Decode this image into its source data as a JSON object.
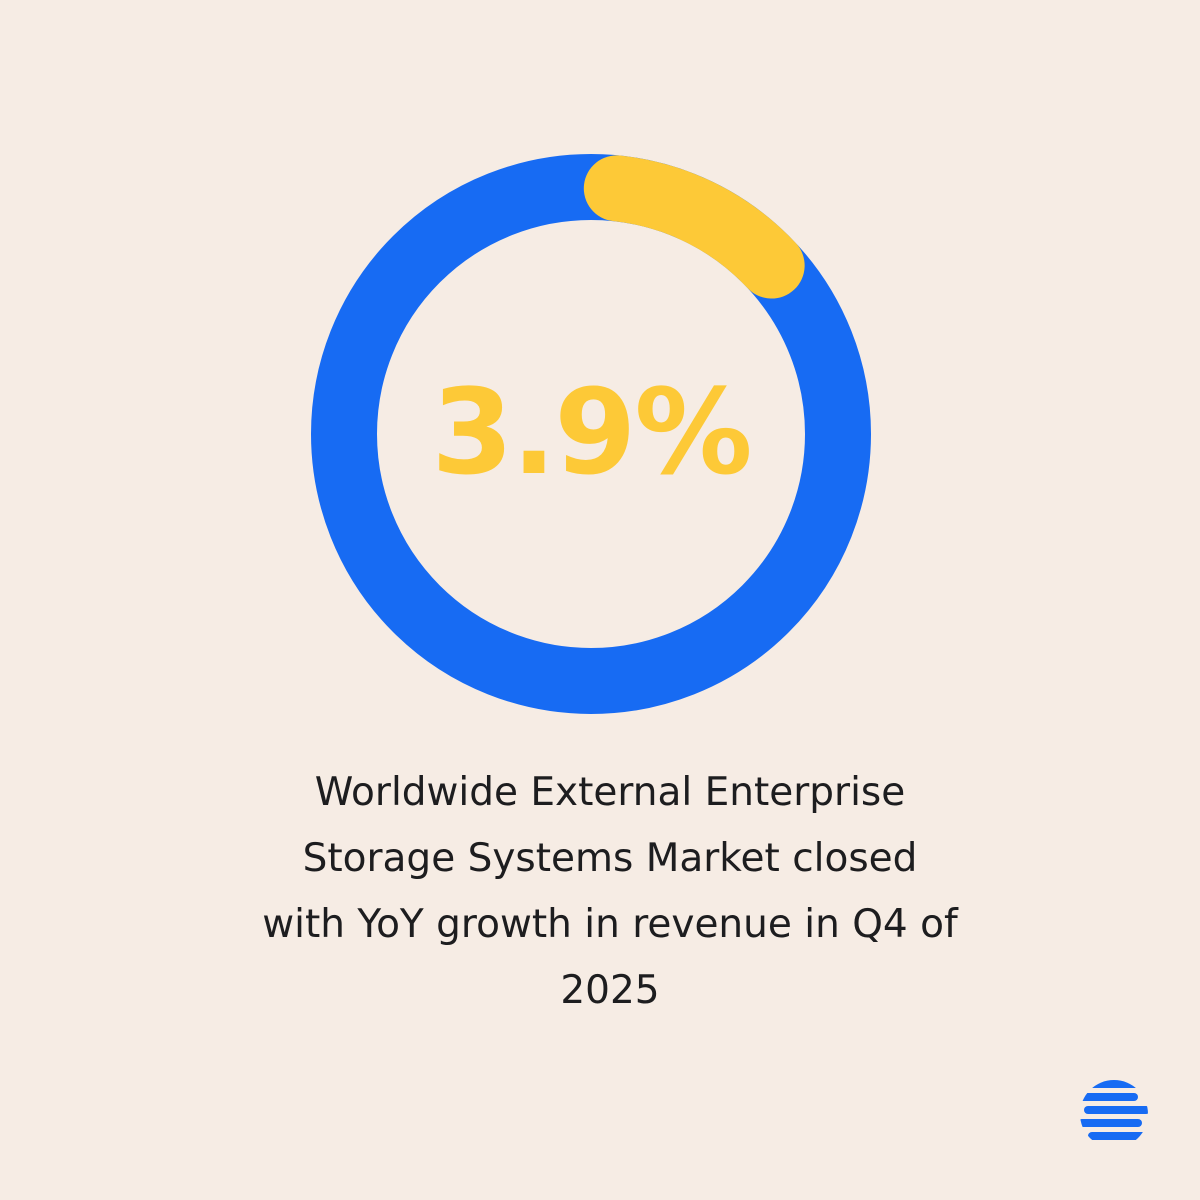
{
  "colors": {
    "background": "#f6ece4",
    "ring": "#176bf3",
    "highlight": "#fdc937",
    "text": "#1d1d1f",
    "logo": "#176bf3"
  },
  "chart_data": {
    "type": "pie",
    "variant": "donut",
    "value_percent": 3.9,
    "center_label": "3.9%",
    "legend": "none"
  },
  "caption": {
    "line1": "Worldwide External Enterprise",
    "line2": "Storage Systems Market closed",
    "line3": "with YoY growth in revenue in Q4 of",
    "line4": "2025"
  },
  "logo": {
    "icon": "striped-circle-logo-icon"
  }
}
